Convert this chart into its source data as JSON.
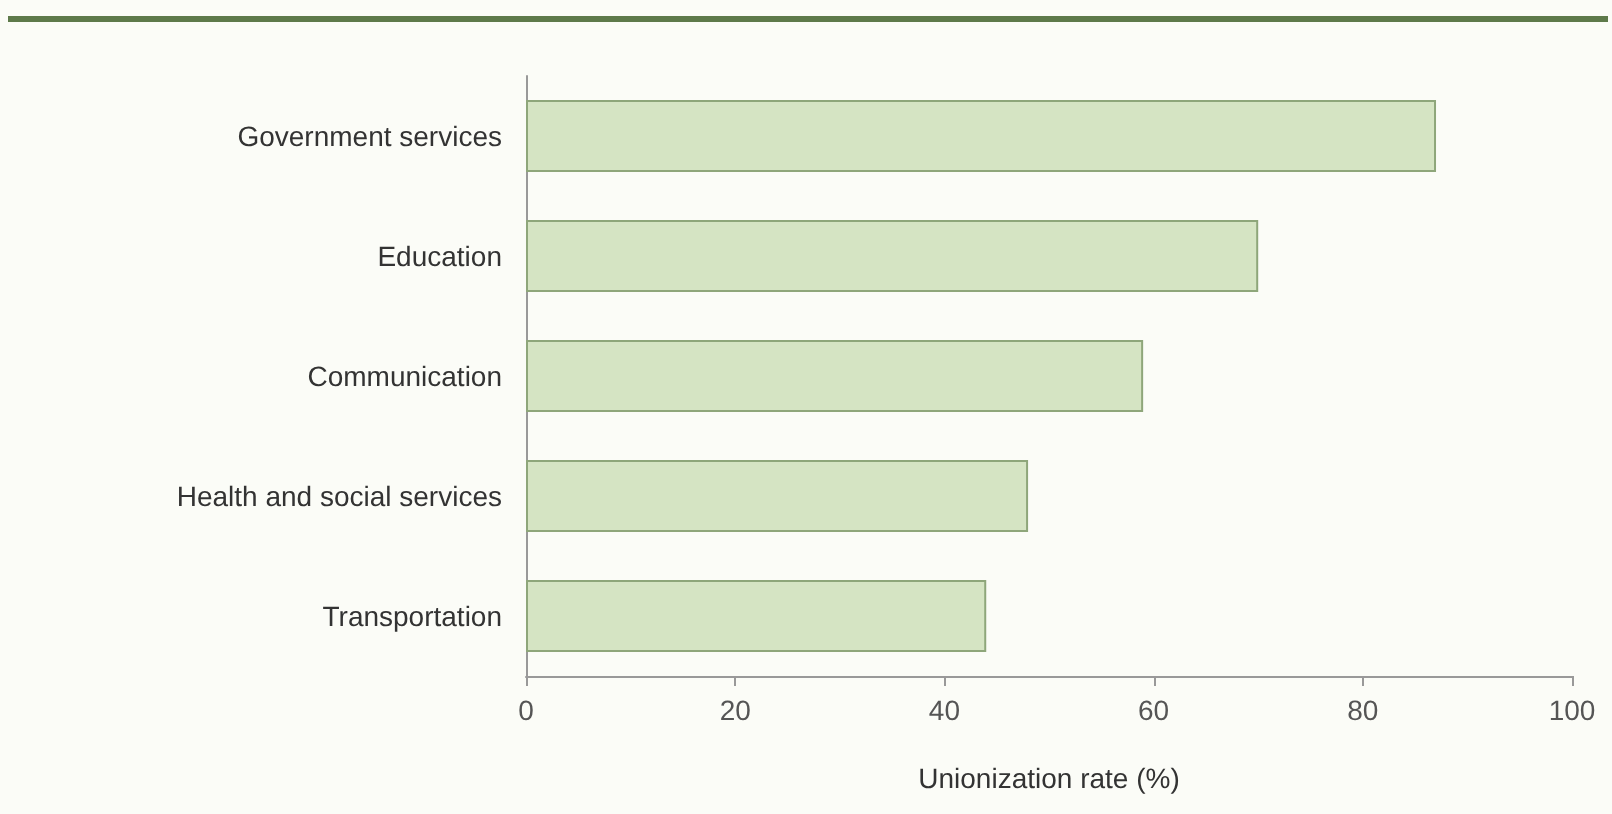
{
  "chart_data": {
    "type": "bar",
    "orientation": "horizontal",
    "categories": [
      "Government services",
      "Education",
      "Communication",
      "Health and social services",
      "Transportation"
    ],
    "values": [
      87,
      70,
      59,
      48,
      44
    ],
    "color": "#d5e4c3",
    "xlabel": "Unionization rate (%)",
    "xlim": [
      0,
      100
    ],
    "xticks": [
      0,
      20,
      40,
      60,
      80,
      100
    ],
    "grid": false
  }
}
